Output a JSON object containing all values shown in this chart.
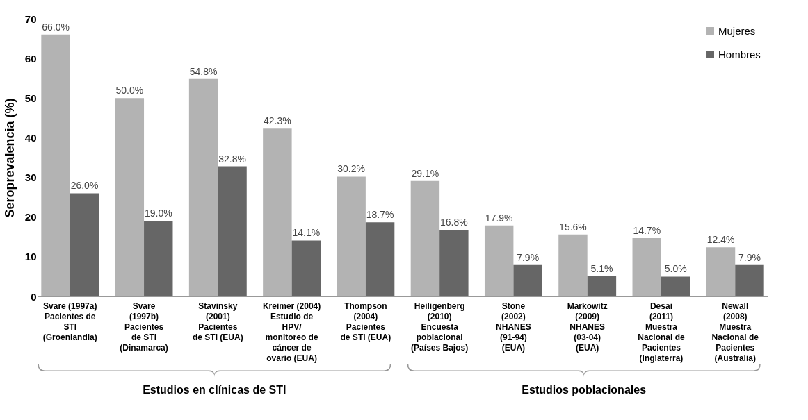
{
  "chart_data": {
    "type": "bar",
    "ylabel": "Seroprevalencia (%)",
    "categories": [
      "Svare (1997a)\nPacientes de\nSTI\n(Groenlandia)",
      "Svare\n(1997b)\nPacientes\nde STI\n(Dinamarca)",
      "Stavinsky\n(2001)\nPacientes\nde STI (EUA)",
      "Kreimer (2004)\nEstudio de\nHPV/\nmonitoreo de\ncáncer de\novario (EUA)",
      "Thompson\n(2004)\nPacientes\nde STI (EUA)",
      "Heiligenberg\n(2010)\nEncuesta\npoblacional\n(Países Bajos)",
      "Stone\n(2002)\nNHANES\n(91-94)\n(EUA)",
      "Markowitz\n(2009)\nNHANES\n(03-04)\n(EUA)",
      "Desai\n(2011)\nMuestra\nNacional de\nPacientes\n(Inglaterra)",
      "Newall\n(2008)\nMuestra\nNacional de\nPacientes\n(Australia)"
    ],
    "series": [
      {
        "name": "Mujeres",
        "color": "#b3b3b3",
        "values": [
          66.0,
          50.0,
          54.8,
          42.3,
          30.2,
          29.1,
          17.9,
          15.6,
          14.7,
          12.4
        ],
        "value_labels": [
          "66.0%",
          "50.0%",
          "54.8%",
          "42.3%",
          "30.2%",
          "29.1%",
          "17.9%",
          "15.6%",
          "14.7%",
          "12.4%"
        ]
      },
      {
        "name": "Hombres",
        "color": "#666666",
        "values": [
          26.0,
          19.0,
          32.8,
          14.1,
          18.7,
          16.8,
          7.9,
          5.1,
          5.0,
          7.9
        ],
        "value_labels": [
          "26.0%",
          "19.0%",
          "32.8%",
          "14.1%",
          "18.7%",
          "16.8%",
          "7.9%",
          "5.1%",
          "5.0%",
          "7.9%"
        ]
      }
    ],
    "ylim": [
      0,
      70
    ],
    "yticks": [
      0,
      10,
      20,
      30,
      40,
      50,
      60,
      70
    ],
    "grid": false,
    "legend": "top right",
    "annotations": [
      "Estudios en clínicas de STI",
      "Estudios poblacionales"
    ]
  }
}
